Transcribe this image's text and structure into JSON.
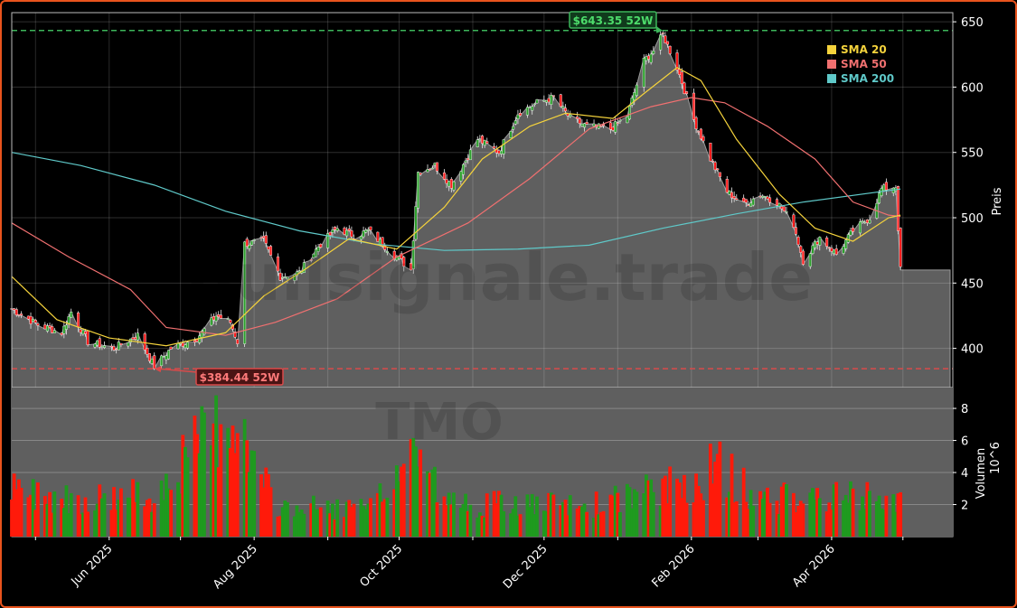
{
  "ticker": "TMO",
  "watermark": "Bullsignale.trade",
  "colors": {
    "up": "#2ca02c",
    "down": "#ff1a1a",
    "sma20": "#f5d33c",
    "sma50": "#f07070",
    "sma200": "#5fc9c9",
    "high_line": "#3cb55a",
    "low_line": "#d94a4a",
    "price_fill": "#5f5f5f"
  },
  "chart_data": {
    "type": "line",
    "title": "",
    "xlabel": "",
    "ylabel": "Preis",
    "volume_ylabel": "Volumen",
    "volume_unit": "10^6",
    "x_tick_labels": [
      "Jun 2025",
      "Aug 2025",
      "Oct 2025",
      "Dec 2025",
      "Feb 2026",
      "Apr 2026"
    ],
    "y_ticks": [
      400,
      450,
      500,
      550,
      600,
      650
    ],
    "volume_ticks": [
      2,
      4,
      6,
      8
    ],
    "ylim": [
      370,
      657
    ],
    "volume_ylim": [
      0,
      9.3
    ],
    "legend": {
      "placement": "top-right",
      "entries": [
        "SMA 20",
        "SMA 50",
        "SMA 200"
      ]
    },
    "annotations": {
      "high_52w": {
        "value": 643.35,
        "label": "$643.35 52W",
        "date": "2026-01-20"
      },
      "low_52w": {
        "value": 384.44,
        "label": "$384.44 52W",
        "date": "2025-06-20"
      }
    },
    "start_date": "2025-04-21",
    "end_date": "2026-05-04",
    "close_anchors": [
      [
        "2025-04-21",
        430
      ],
      [
        "2025-05-02",
        418
      ],
      [
        "2025-05-12",
        412
      ],
      [
        "2025-05-16",
        428
      ],
      [
        "2025-05-23",
        405
      ],
      [
        "2025-06-03",
        400
      ],
      [
        "2025-06-13",
        410
      ],
      [
        "2025-06-20",
        386
      ],
      [
        "2025-06-27",
        400
      ],
      [
        "2025-07-08",
        408
      ],
      [
        "2025-07-16",
        425
      ],
      [
        "2025-07-22",
        420
      ],
      [
        "2025-07-25",
        405
      ],
      [
        "2025-07-28",
        480
      ],
      [
        "2025-08-05",
        482
      ],
      [
        "2025-08-12",
        455
      ],
      [
        "2025-08-20",
        458
      ],
      [
        "2025-08-28",
        478
      ],
      [
        "2025-09-05",
        492
      ],
      [
        "2025-09-12",
        486
      ],
      [
        "2025-09-18",
        490
      ],
      [
        "2025-09-24",
        480
      ],
      [
        "2025-09-30",
        470
      ],
      [
        "2025-10-06",
        460
      ],
      [
        "2025-10-09",
        535
      ],
      [
        "2025-10-16",
        540
      ],
      [
        "2025-10-23",
        525
      ],
      [
        "2025-11-03",
        560
      ],
      [
        "2025-11-12",
        550
      ],
      [
        "2025-11-20",
        580
      ],
      [
        "2025-11-28",
        588
      ],
      [
        "2025-12-05",
        592
      ],
      [
        "2025-12-12",
        576
      ],
      [
        "2025-12-19",
        570
      ],
      [
        "2025-12-29",
        568
      ],
      [
        "2026-01-05",
        578
      ],
      [
        "2026-01-12",
        620
      ],
      [
        "2026-01-16",
        628
      ],
      [
        "2026-01-20",
        640
      ],
      [
        "2026-01-26",
        615
      ],
      [
        "2026-02-02",
        575
      ],
      [
        "2026-02-09",
        545
      ],
      [
        "2026-02-16",
        520
      ],
      [
        "2026-02-23",
        510
      ],
      [
        "2026-03-02",
        518
      ],
      [
        "2026-03-09",
        512
      ],
      [
        "2026-03-16",
        495
      ],
      [
        "2026-03-20",
        467
      ],
      [
        "2026-03-27",
        485
      ],
      [
        "2026-04-03",
        472
      ],
      [
        "2026-04-10",
        490
      ],
      [
        "2026-04-17",
        500
      ],
      [
        "2026-04-22",
        522
      ],
      [
        "2026-04-28",
        524
      ],
      [
        "2026-04-30",
        460
      ]
    ],
    "sma20_anchors": [
      [
        "2025-04-21",
        455
      ],
      [
        "2025-05-10",
        422
      ],
      [
        "2025-06-01",
        408
      ],
      [
        "2025-06-25",
        402
      ],
      [
        "2025-07-20",
        412
      ],
      [
        "2025-08-05",
        440
      ],
      [
        "2025-08-22",
        460
      ],
      [
        "2025-09-10",
        484
      ],
      [
        "2025-09-30",
        476
      ],
      [
        "2025-10-20",
        508
      ],
      [
        "2025-11-05",
        545
      ],
      [
        "2025-11-25",
        570
      ],
      [
        "2025-12-10",
        580
      ],
      [
        "2025-12-30",
        576
      ],
      [
        "2026-01-12",
        595
      ],
      [
        "2026-01-26",
        615
      ],
      [
        "2026-02-05",
        605
      ],
      [
        "2026-02-20",
        560
      ],
      [
        "2026-03-10",
        518
      ],
      [
        "2026-03-25",
        492
      ],
      [
        "2026-04-10",
        482
      ],
      [
        "2026-04-25",
        500
      ],
      [
        "2026-04-30",
        502
      ]
    ],
    "sma50_anchors": [
      [
        "2025-04-21",
        496
      ],
      [
        "2025-05-15",
        470
      ],
      [
        "2025-06-10",
        445
      ],
      [
        "2025-06-25",
        416
      ],
      [
        "2025-07-20",
        410
      ],
      [
        "2025-08-10",
        420
      ],
      [
        "2025-09-05",
        438
      ],
      [
        "2025-09-30",
        470
      ],
      [
        "2025-10-30",
        496
      ],
      [
        "2025-11-25",
        530
      ],
      [
        "2025-12-20",
        568
      ],
      [
        "2026-01-15",
        585
      ],
      [
        "2026-02-01",
        592
      ],
      [
        "2026-02-15",
        588
      ],
      [
        "2026-03-05",
        570
      ],
      [
        "2026-03-25",
        545
      ],
      [
        "2026-04-10",
        512
      ],
      [
        "2026-04-25",
        502
      ],
      [
        "2026-04-30",
        501
      ]
    ],
    "sma200_anchors": [
      [
        "2025-04-21",
        550
      ],
      [
        "2025-05-20",
        540
      ],
      [
        "2025-06-20",
        525
      ],
      [
        "2025-07-20",
        505
      ],
      [
        "2025-08-20",
        490
      ],
      [
        "2025-09-20",
        480
      ],
      [
        "2025-10-20",
        475
      ],
      [
        "2025-11-20",
        476
      ],
      [
        "2025-12-20",
        479
      ],
      [
        "2026-01-20",
        492
      ],
      [
        "2026-02-20",
        503
      ],
      [
        "2026-03-20",
        512
      ],
      [
        "2026-04-30",
        522
      ]
    ],
    "volume_anchors": [
      [
        "2025-04-21",
        3
      ],
      [
        "2025-05-20",
        2.5
      ],
      [
        "2025-06-20",
        2.8
      ],
      [
        "2025-07-24",
        8.6
      ],
      [
        "2025-07-28",
        6
      ],
      [
        "2025-08-10",
        2
      ],
      [
        "2025-09-20",
        1.8
      ],
      [
        "2025-10-01",
        4.5
      ],
      [
        "2025-10-09",
        6
      ],
      [
        "2025-10-20",
        2.2
      ],
      [
        "2025-11-20",
        2.1
      ],
      [
        "2025-12-20",
        2
      ],
      [
        "2026-01-15",
        3
      ],
      [
        "2026-01-30",
        3.5
      ],
      [
        "2026-02-12",
        4.6
      ],
      [
        "2026-03-01",
        2.5
      ],
      [
        "2026-04-30",
        2.6
      ]
    ]
  }
}
